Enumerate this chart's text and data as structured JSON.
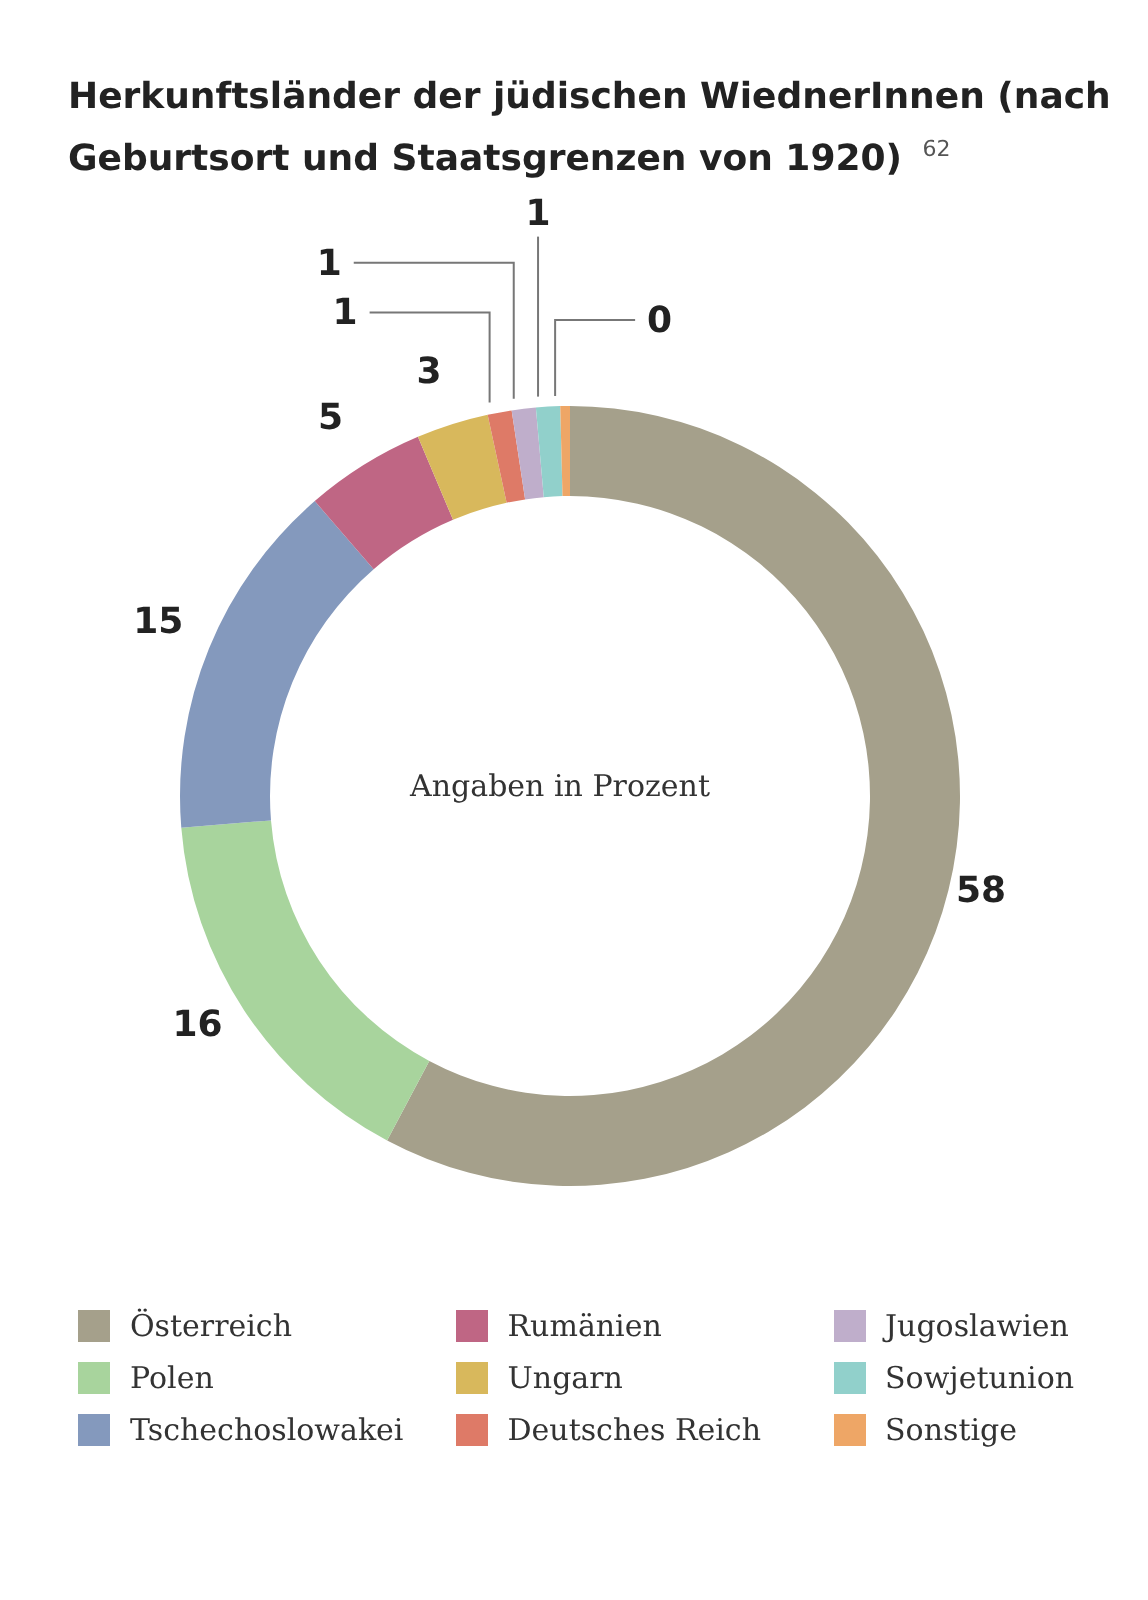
{
  "chart_data": {
    "type": "donut",
    "title": "Herkunftsländer der jüdischen WiednerInnen (nach Geburtsort und Staatsgrenzen von 1920) $^{62}$",
    "categories": [
      "Österreich",
      "Polen",
      "Tschechoslowakei",
      "Rumänien",
      "Ungarn",
      "Deutsches Reich",
      "Jugoslawien",
      "Sowjetunion",
      "Sonstige"
    ],
    "values": [
      58,
      16,
      15,
      5,
      3,
      1,
      1,
      1,
      0.4
    ],
    "value_labels": [
      "58",
      "16",
      "15",
      "5",
      "3",
      "1",
      "1",
      "1",
      "0"
    ],
    "colors": [
      "#a5a08b",
      "#a8d49d",
      "#8499bd",
      "#bf6684",
      "#d8b85c",
      "#de7a67",
      "#bfaecb",
      "#91d0cb",
      "#eea666"
    ],
    "legend": "bottom",
    "annotations": [
      "Angaben in Prozent"
    ]
  }
}
